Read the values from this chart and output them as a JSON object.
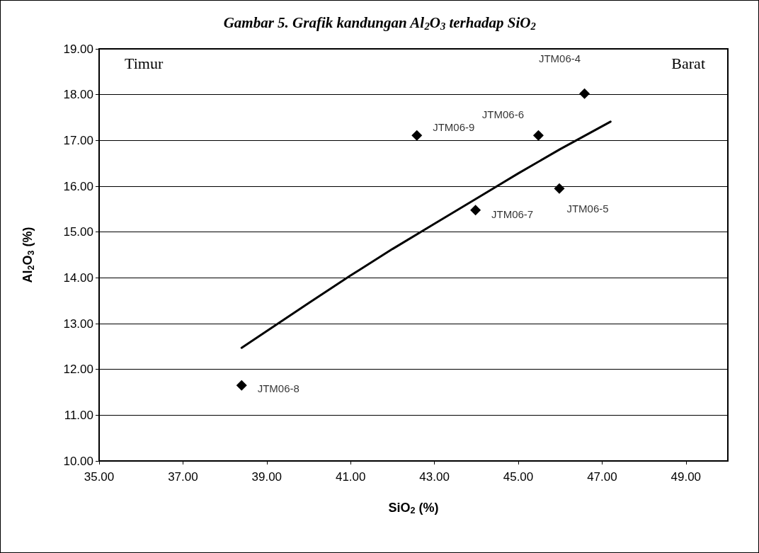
{
  "chart_data": {
    "type": "scatter",
    "title": "Gambar 5. Grafik kandungan Al$_{2}$O$_{3}$ terhadap SiO$_{2}$",
    "xlabel": "SiO$_{2}$ (%)",
    "ylabel": "Al$_{2}$O$_{3}$ (%)",
    "xlim": [
      35,
      50
    ],
    "xticks": [
      {
        "value": 35,
        "label": "35.00"
      },
      {
        "value": 37,
        "label": "37.00"
      },
      {
        "value": 39,
        "label": "39.00"
      },
      {
        "value": 41,
        "label": "41.00"
      },
      {
        "value": 43,
        "label": "43.00"
      },
      {
        "value": 45,
        "label": "45.00"
      },
      {
        "value": 47,
        "label": "47.00"
      },
      {
        "value": 49,
        "label": "49.00"
      }
    ],
    "ylim": [
      10,
      19
    ],
    "yticks": [
      {
        "value": 10,
        "label": "10.00"
      },
      {
        "value": 11,
        "label": "11.00"
      },
      {
        "value": 12,
        "label": "12.00"
      },
      {
        "value": 13,
        "label": "13.00"
      },
      {
        "value": 14,
        "label": "14.00"
      },
      {
        "value": 15,
        "label": "15.00"
      },
      {
        "value": 16,
        "label": "16.00"
      },
      {
        "value": 17,
        "label": "17.00"
      },
      {
        "value": 18,
        "label": "18.00"
      },
      {
        "value": 19,
        "label": "19.00"
      }
    ],
    "grid": "y",
    "marker": "diamond",
    "series": [
      {
        "color": "#000000",
        "x": [
          46.58,
          45.98,
          45.48,
          43.98,
          38.4,
          42.58
        ],
        "values": [
          18.02,
          15.95,
          17.11,
          15.48,
          11.65,
          17.11
        ]
      },
      {
        "type": "line",
        "color": "#000000",
        "marker": "none",
        "line_style": "solid",
        "x": [
          38.4,
          40,
          41,
          42,
          43,
          44,
          45,
          46,
          47.2
        ],
        "values": [
          12.47,
          13.45,
          14.05,
          14.63,
          15.18,
          15.73,
          16.28,
          16.81,
          17.41
        ]
      }
    ],
    "annotations": [
      {
        "text": "JTM06-4",
        "x": 46.58,
        "y": 18.02
      },
      {
        "text": "JTM06-5",
        "x": 45.98,
        "y": 15.95
      },
      {
        "text": "JTM06-6",
        "x": 45.48,
        "y": 17.11
      },
      {
        "text": "JTM06-7",
        "x": 43.98,
        "y": 15.48
      },
      {
        "text": "JTM06-8",
        "x": 38.4,
        "y": 11.65
      },
      {
        "text": "JTM06-9",
        "x": 42.58,
        "y": 17.11
      },
      "Timur",
      "Barat"
    ]
  }
}
